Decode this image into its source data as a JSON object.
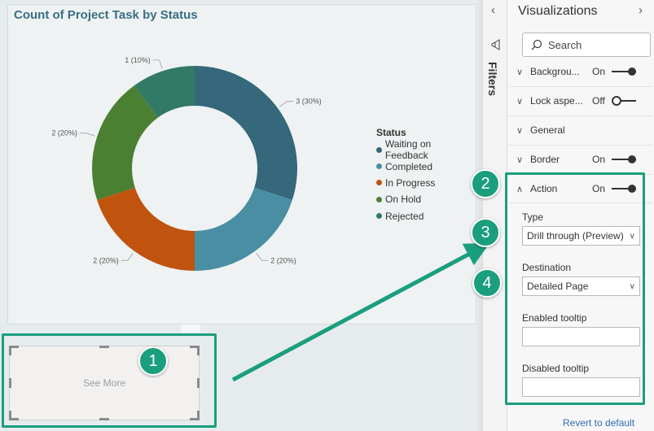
{
  "chart_data": {
    "type": "pie",
    "subtype": "donut",
    "title": "Count of Project Task by Status",
    "legend_title": "Status",
    "legend_position": "right",
    "categories": [
      "Waiting on Feedback",
      "Completed",
      "In Progress",
      "On Hold",
      "Rejected"
    ],
    "values": [
      3,
      2,
      2,
      2,
      1
    ],
    "labels": [
      "3 (30%)",
      "2 (20%)",
      "2 (20%)",
      "2 (20%)",
      "1 (10%)"
    ],
    "colors": [
      "#34687a",
      "#4a8ea3",
      "#c0540f",
      "#4b7f32",
      "#327a65"
    ]
  },
  "see_more": {
    "label": "See More"
  },
  "filters": {
    "label": "Filters"
  },
  "visualizations": {
    "title": "Visualizations",
    "search_placeholder": "Search",
    "sections": [
      {
        "name": "Backgrou...",
        "state": "On"
      },
      {
        "name": "Lock aspe...",
        "state": "Off"
      },
      {
        "name": "General",
        "state": ""
      },
      {
        "name": "Border",
        "state": "On"
      },
      {
        "name": "Action",
        "state": "On"
      }
    ],
    "action": {
      "type_label": "Type",
      "type_value": "Drill through (Preview)",
      "destination_label": "Destination",
      "destination_value": "Detailed Page",
      "enabled_tooltip_label": "Enabled tooltip",
      "disabled_tooltip_label": "Disabled tooltip"
    },
    "revert_label": "Revert to default"
  },
  "callouts": [
    "1",
    "2",
    "3",
    "4"
  ],
  "accent_color": "#1a9e7e"
}
